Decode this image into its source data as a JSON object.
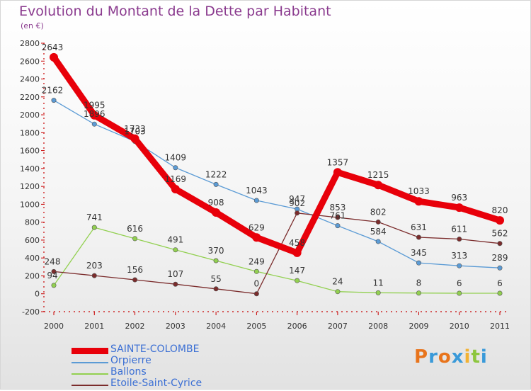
{
  "chart_data": {
    "type": "line",
    "title": "Evolution du Montant de la Dette par Habitant",
    "subtitle": "(en €)",
    "xlabel": "",
    "ylabel": "",
    "categories": [
      "2000",
      "2001",
      "2002",
      "2003",
      "2004",
      "2005",
      "2006",
      "2007",
      "2008",
      "2009",
      "2010",
      "2011"
    ],
    "ylim": [
      -200,
      2800
    ],
    "yticks": [
      -200,
      0,
      200,
      400,
      600,
      800,
      1000,
      1200,
      1400,
      1600,
      1800,
      2000,
      2200,
      2400,
      2600,
      2800
    ],
    "grid": false,
    "legend_position": "bottom-left",
    "series": [
      {
        "name": "SAINTE-COLOMBE",
        "color": "#e8000a",
        "emphasis": true,
        "values": [
          2643,
          1995,
          1733,
          1169,
          908,
          629,
          458,
          1357,
          1215,
          1033,
          963,
          820
        ]
      },
      {
        "name": "Orpierre",
        "color": "#5b9bd5",
        "emphasis": false,
        "values": [
          2162,
          1896,
          1703,
          1409,
          1222,
          1043,
          947,
          761,
          584,
          345,
          313,
          289
        ]
      },
      {
        "name": "Ballons",
        "color": "#92d050",
        "emphasis": false,
        "values": [
          94,
          741,
          616,
          491,
          370,
          249,
          147,
          24,
          11,
          8,
          6,
          6
        ]
      },
      {
        "name": "Etoile-Saint-Cyrice",
        "color": "#7b2c2c",
        "emphasis": false,
        "values": [
          248,
          203,
          156,
          107,
          55,
          0,
          902,
          853,
          802,
          631,
          611,
          562
        ]
      }
    ]
  },
  "logo": {
    "text": "Proxiti",
    "letters": [
      "P",
      "r",
      "o",
      "x",
      "i",
      "t",
      "i"
    ],
    "colors": [
      "#e8741c",
      "#3a9ad9",
      "#e8741c",
      "#3a9ad9",
      "#f2b233",
      "#8dc63f",
      "#3a9ad9"
    ]
  }
}
